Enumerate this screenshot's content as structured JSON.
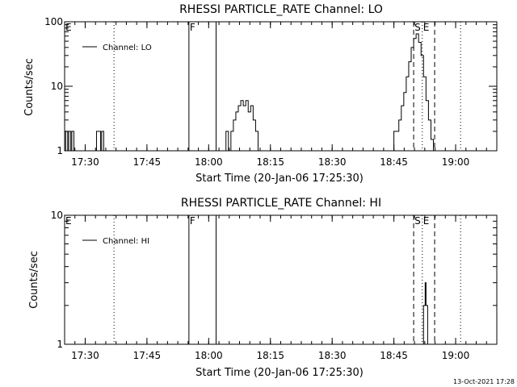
{
  "timestamp": "13-Oct-2021 17:28",
  "chart_data": [
    {
      "type": "line",
      "title": "RHESSI PARTICLE_RATE Channel: LO",
      "xlabel": "Start Time (20-Jan-06 17:25:30)",
      "ylabel": "Counts/sec",
      "yscale": "log",
      "ylim": [
        1,
        100
      ],
      "xlim": [
        17.4167,
        19.1667
      ],
      "ytick_labels": [
        "1",
        "10",
        "100"
      ],
      "ytick_values": [
        1,
        10,
        100
      ],
      "xtick_labels": [
        "17:30",
        "17:45",
        "18:00",
        "18:15",
        "18:30",
        "18:45",
        "19:00"
      ],
      "xtick_values": [
        17.5,
        17.75,
        18.0,
        18.25,
        18.5,
        18.75,
        19.0
      ],
      "legend": "top-left",
      "series": [
        {
          "name": "Channel: LO",
          "x": [
            17.4167,
            17.4208,
            17.425,
            17.4292,
            17.4333,
            17.4375,
            17.4417,
            17.4458,
            17.45,
            17.4542,
            17.4583,
            17.4625,
            17.4667,
            17.4708,
            17.475,
            17.4792,
            17.4833,
            17.4875,
            17.4917,
            17.4958,
            17.5,
            17.5042,
            17.5083,
            17.5125,
            17.5167,
            17.5208,
            17.525,
            17.5292,
            17.5333,
            17.5375,
            17.5417,
            17.5458,
            17.55,
            17.5542,
            17.5583,
            17.5625,
            17.5667,
            17.5708,
            17.575,
            17.95,
            17.96,
            17.97,
            17.98,
            17.99,
            18.0,
            18.01,
            18.02,
            18.03,
            18.04,
            18.05,
            18.06,
            18.07,
            18.08,
            18.09,
            18.1,
            18.11,
            18.12,
            18.13,
            18.14,
            18.15,
            18.16,
            18.17,
            18.18,
            18.19,
            18.2,
            18.21,
            18.22,
            18.23,
            18.24,
            18.25,
            18.26,
            18.27,
            18.28,
            18.29,
            18.3,
            18.73,
            18.74,
            18.75,
            18.76,
            18.77,
            18.78,
            18.79,
            18.8,
            18.81,
            18.82,
            18.83,
            18.84,
            18.85,
            18.86,
            18.87,
            18.88,
            18.89,
            18.9,
            18.91
          ],
          "y": [
            1,
            2,
            2,
            1,
            2,
            2,
            1,
            2,
            2,
            1,
            1,
            1,
            1,
            1,
            1,
            1,
            1,
            1,
            1,
            1,
            1,
            1,
            1,
            1,
            1,
            1,
            1,
            1,
            1,
            1,
            1,
            2,
            2,
            2,
            2,
            1,
            2,
            2,
            1,
            1,
            1,
            1,
            1,
            1,
            1,
            1,
            1,
            1,
            1,
            1,
            1,
            2,
            1,
            2,
            3,
            4,
            5,
            6,
            5,
            6,
            4,
            5,
            3,
            2,
            1,
            1,
            1,
            1,
            1,
            1,
            1,
            1,
            1,
            1,
            1,
            1,
            1,
            2,
            2,
            3,
            5,
            8,
            14,
            24,
            40,
            55,
            65,
            48,
            30,
            14,
            6,
            3,
            1.5,
            1
          ]
        }
      ],
      "vlines": [
        {
          "x": 17.6167,
          "style": "dotted"
        },
        {
          "x": 17.92,
          "style": "solid"
        },
        {
          "x": 18.03,
          "style": "solid"
        },
        {
          "x": 18.83,
          "style": "dashed"
        },
        {
          "x": 18.865,
          "style": "dotted"
        },
        {
          "x": 18.915,
          "style": "dashed"
        },
        {
          "x": 19.02,
          "style": "dotted"
        }
      ],
      "markers": [
        {
          "label": "E",
          "x": 17.4167
        },
        {
          "label": "F",
          "x": 17.92
        },
        {
          "label": "S",
          "x": 18.83
        },
        {
          "label": "E",
          "x": 18.865
        }
      ]
    },
    {
      "type": "line",
      "title": "RHESSI PARTICLE_RATE Channel: HI",
      "xlabel": "Start Time (20-Jan-06 17:25:30)",
      "ylabel": "Counts/sec",
      "yscale": "log",
      "ylim": [
        1,
        10
      ],
      "xlim": [
        17.4167,
        19.1667
      ],
      "ytick_labels": [
        "1",
        "10"
      ],
      "ytick_values": [
        1,
        10
      ],
      "xtick_labels": [
        "17:30",
        "17:45",
        "18:00",
        "18:15",
        "18:30",
        "18:45",
        "19:00"
      ],
      "xtick_values": [
        17.5,
        17.75,
        18.0,
        18.25,
        18.5,
        18.75,
        19.0
      ],
      "legend": "top-left",
      "series": [
        {
          "name": "Channel: HI",
          "x": [
            18.8667,
            18.87,
            18.8733,
            18.8767,
            18.88,
            18.8833,
            18.8867
          ],
          "y": [
            1,
            2,
            2,
            3,
            2,
            2,
            1
          ]
        }
      ],
      "vlines": [
        {
          "x": 17.6167,
          "style": "dotted"
        },
        {
          "x": 17.92,
          "style": "solid"
        },
        {
          "x": 18.03,
          "style": "solid"
        },
        {
          "x": 18.83,
          "style": "dashed"
        },
        {
          "x": 18.865,
          "style": "dotted"
        },
        {
          "x": 18.915,
          "style": "dashed"
        },
        {
          "x": 19.02,
          "style": "dotted"
        }
      ],
      "markers": [
        {
          "label": "E",
          "x": 17.4167
        },
        {
          "label": "F",
          "x": 17.92
        },
        {
          "label": "S",
          "x": 18.83
        },
        {
          "label": "E",
          "x": 18.865
        }
      ]
    }
  ]
}
